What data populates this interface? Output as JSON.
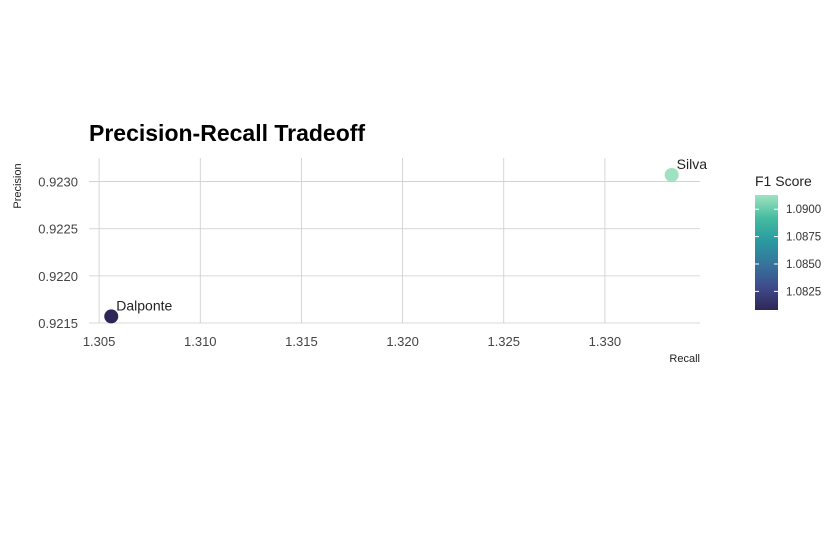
{
  "chart_data": {
    "type": "scatter",
    "title": "Precision-Recall Tradeoff",
    "xlabel": "Recall",
    "ylabel": "Precision",
    "xlim": [
      1.3045,
      1.3347
    ],
    "ylim": [
      0.9215,
      0.92325
    ],
    "x_ticks": [
      1.305,
      1.31,
      1.315,
      1.32,
      1.325,
      1.33
    ],
    "x_tick_labels": [
      "1.305",
      "1.310",
      "1.315",
      "1.320",
      "1.325",
      "1.330"
    ],
    "y_ticks": [
      0.9215,
      0.922,
      0.9225,
      0.923
    ],
    "y_tick_labels": [
      "0.9215",
      "0.9220",
      "0.9225",
      "0.9230"
    ],
    "grid": true,
    "points": [
      {
        "label": "Dalponte",
        "x": 1.3056,
        "y": 0.92157,
        "f1": 1.0808
      },
      {
        "label": "Silva",
        "x": 1.3333,
        "y": 0.92307,
        "f1": 1.0913
      }
    ],
    "color_legend": {
      "title": "F1 Score",
      "min": 1.0808,
      "max": 1.0913,
      "ticks": [
        1.09,
        1.0875,
        1.085,
        1.0825
      ],
      "tick_labels": [
        "1.0900",
        "1.0875",
        "1.0850",
        "1.0825"
      ],
      "placement": "right",
      "colors": [
        "#2f2656",
        "#3f4b8c",
        "#36749c",
        "#2a9aa1",
        "#45bca0",
        "#9fe2c0"
      ]
    }
  }
}
